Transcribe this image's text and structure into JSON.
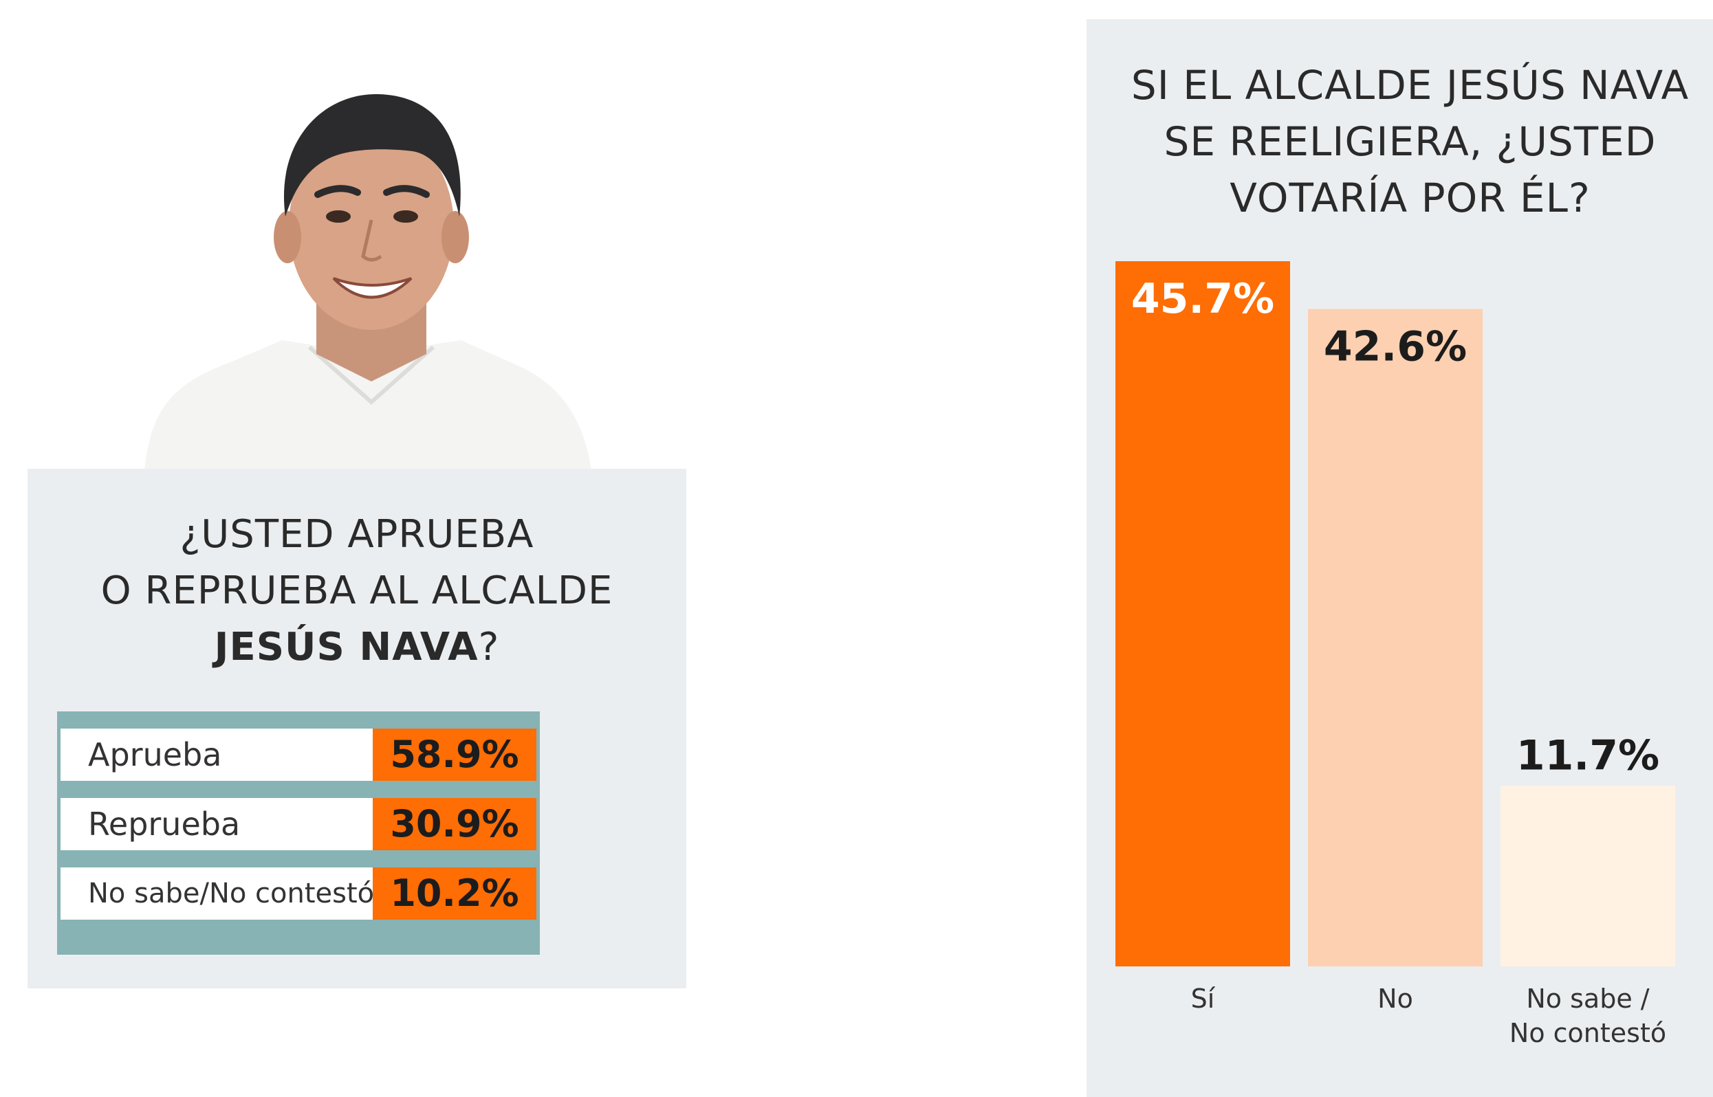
{
  "approval": {
    "question_line1": "¿USTED APRUEBA",
    "question_line2": "O REPRUEBA AL ALCALDE",
    "question_bold": "JESÚS NAVA",
    "question_end": "?",
    "rows": [
      {
        "label": "Aprueba",
        "value": "58.9%"
      },
      {
        "label": "Reprueba",
        "value": "30.9%"
      },
      {
        "label": "No sabe/No contestó",
        "value": "10.2%"
      }
    ]
  },
  "reelection": {
    "question_line1": "SI EL ALCALDE JESÚS NAVA",
    "question_line2": "SE REELIGIERA, ¿USTED",
    "question_line3": "VOTARÍA POR ÉL?"
  },
  "chart_data": [
    {
      "type": "table",
      "title": "¿USTED APRUEBA O REPRUEBA AL ALCALDE JESÚS NAVA?",
      "categories": [
        "Aprueba",
        "Reprueba",
        "No sabe/No contestó"
      ],
      "values": [
        58.9,
        30.9,
        10.2
      ]
    },
    {
      "type": "bar",
      "title": "SI EL ALCALDE JESÚS NAVA SE REELIGIERA, ¿USTED VOTARÍA POR ÉL?",
      "categories": [
        "Sí",
        "No",
        "No sabe / No contestó"
      ],
      "values": [
        45.7,
        42.6,
        11.7
      ],
      "value_labels": [
        "45.7%",
        "42.6%",
        "11.7%"
      ],
      "colors": [
        "#ff6d05",
        "#fcd0b0",
        "#fff2e2"
      ],
      "ylim": [
        0,
        45.7
      ],
      "grid": false
    }
  ]
}
